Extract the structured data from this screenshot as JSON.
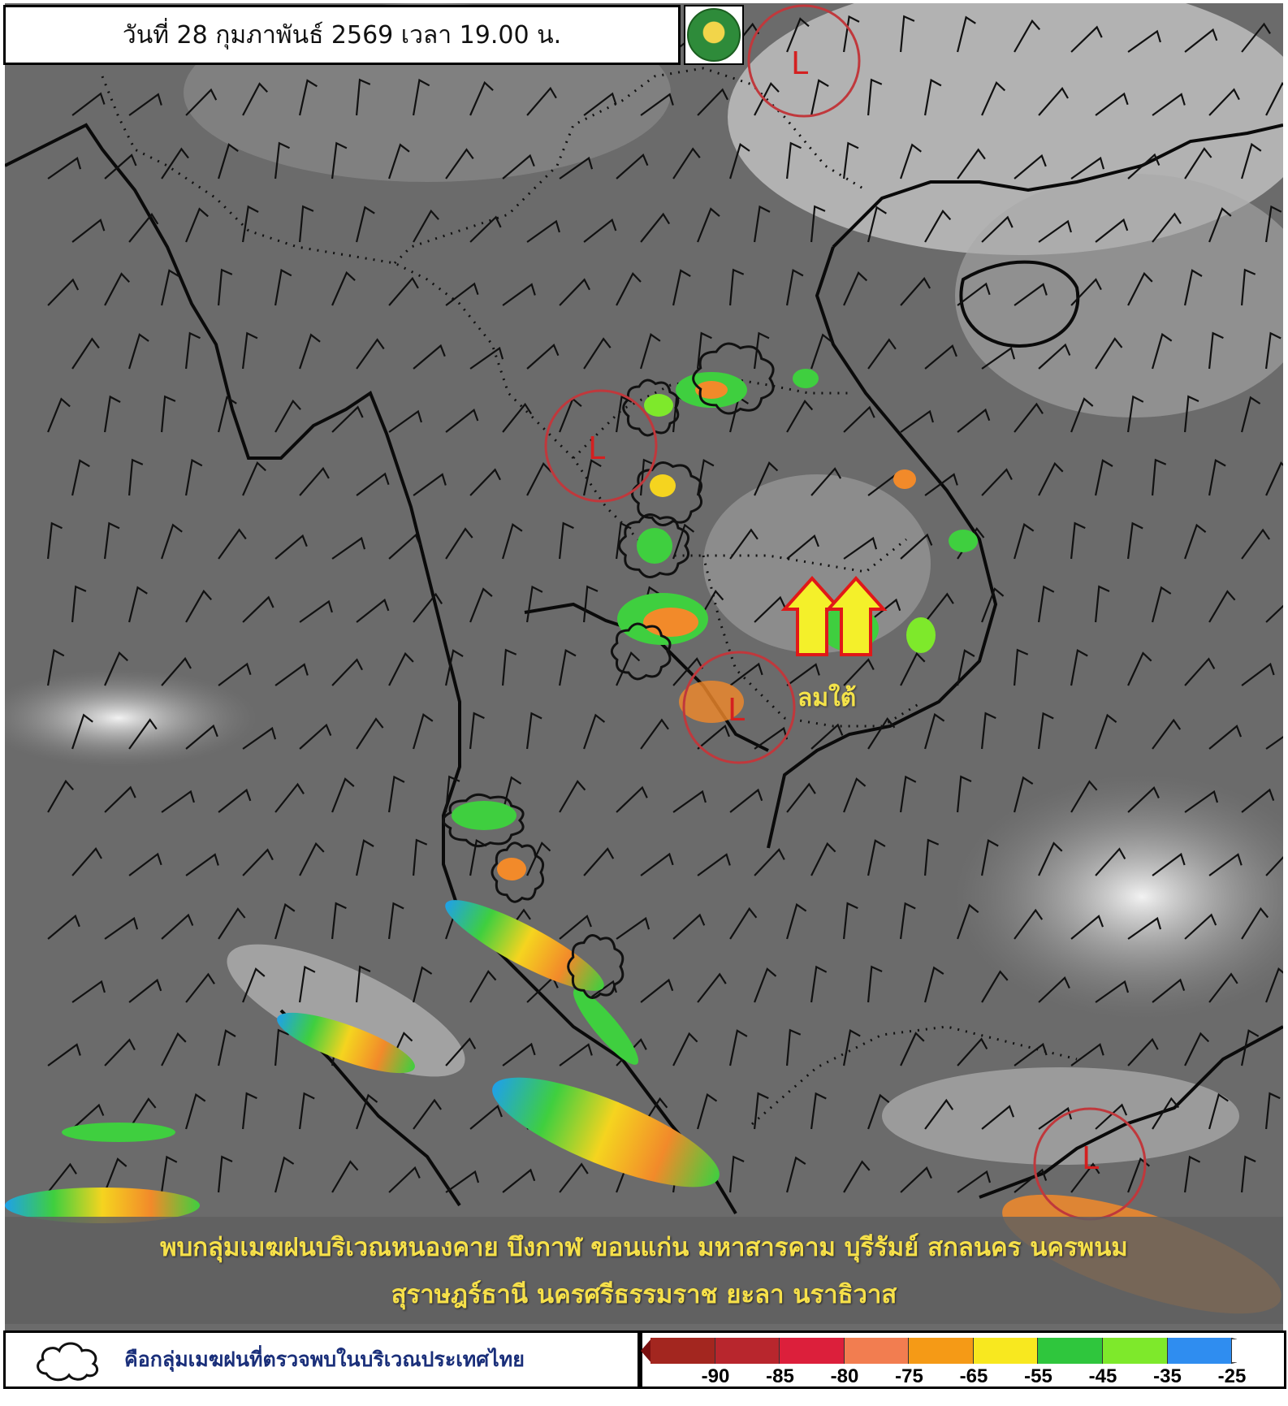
{
  "header": {
    "date_text": "วันที่ 28 กุมภาพันธ์ 2569 เวลา 19.00 น.",
    "logo_icon": "tmd-logo-icon"
  },
  "map": {
    "low_pressure_symbol": "L",
    "wind_annotation": "ลมใต้",
    "low_color": "#d42020",
    "annotation_color": "#f6e04a"
  },
  "banner": {
    "line1": "พบกลุ่มเมฆฝนบริเวณหนองคาย บึงกาฬ ขอนแก่น มหาสารคาม บุรีรัมย์ สกลนคร นครพนม",
    "line2": "สุราษฎร์ธานี นครศรีธรรมราช ยะลา นราธิวาส"
  },
  "legend": {
    "cloud_icon": "cloud-outline-icon",
    "cloud_description": "คือกลุ่มเมฆฝนที่ตรวจพบในบริเวณประเทศไทย",
    "scale_colors": [
      "#a3261f",
      "#b8262d",
      "#dc1f3b",
      "#f27d50",
      "#f59a16",
      "#f8e81f",
      "#2fc63d",
      "#7ee92b",
      "#2f8df0"
    ],
    "scale_ticks": [
      "-90",
      "-85",
      "-80",
      "-75",
      "-65",
      "-55",
      "-45",
      "-35",
      "-25"
    ]
  }
}
